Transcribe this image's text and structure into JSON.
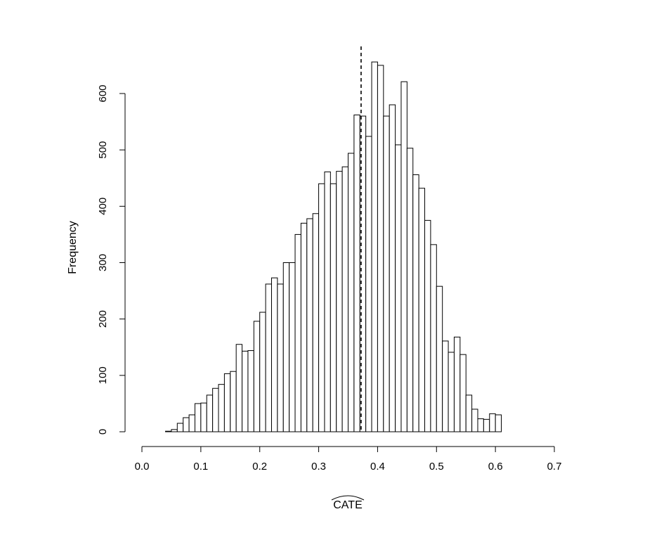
{
  "chart_data": {
    "type": "bar",
    "subtype": "histogram",
    "title": "",
    "xlabel": "CATE",
    "xlabel_decoration": "wide-hat",
    "ylabel": "Frequency",
    "xlim": [
      0.0,
      0.7
    ],
    "ylim": [
      0,
      600
    ],
    "x_ticks": [
      "0.0",
      "0.1",
      "0.2",
      "0.3",
      "0.4",
      "0.5",
      "0.6",
      "0.7"
    ],
    "y_ticks": [
      "0",
      "100",
      "200",
      "300",
      "400",
      "500",
      "600"
    ],
    "bin_width": 0.01,
    "bin_start": 0.04,
    "bin_counts": [
      1,
      4,
      15,
      25,
      30,
      50,
      51,
      65,
      77,
      84,
      103,
      107,
      155,
      143,
      144,
      196,
      212,
      262,
      273,
      262,
      300,
      300,
      350,
      370,
      378,
      387,
      440,
      461,
      440,
      462,
      470,
      494,
      562,
      560,
      524,
      656,
      650,
      560,
      580,
      509,
      621,
      503,
      456,
      432,
      375,
      332,
      258,
      161,
      141,
      168,
      137,
      65,
      40,
      23,
      22,
      32,
      30
    ],
    "reference_line": {
      "x": 0.372,
      "style": "dashed"
    },
    "grid": false,
    "legend": "none",
    "colors": {
      "bar_fill": "#ffffff",
      "bar_stroke": "#000000",
      "line": "#000000"
    }
  }
}
